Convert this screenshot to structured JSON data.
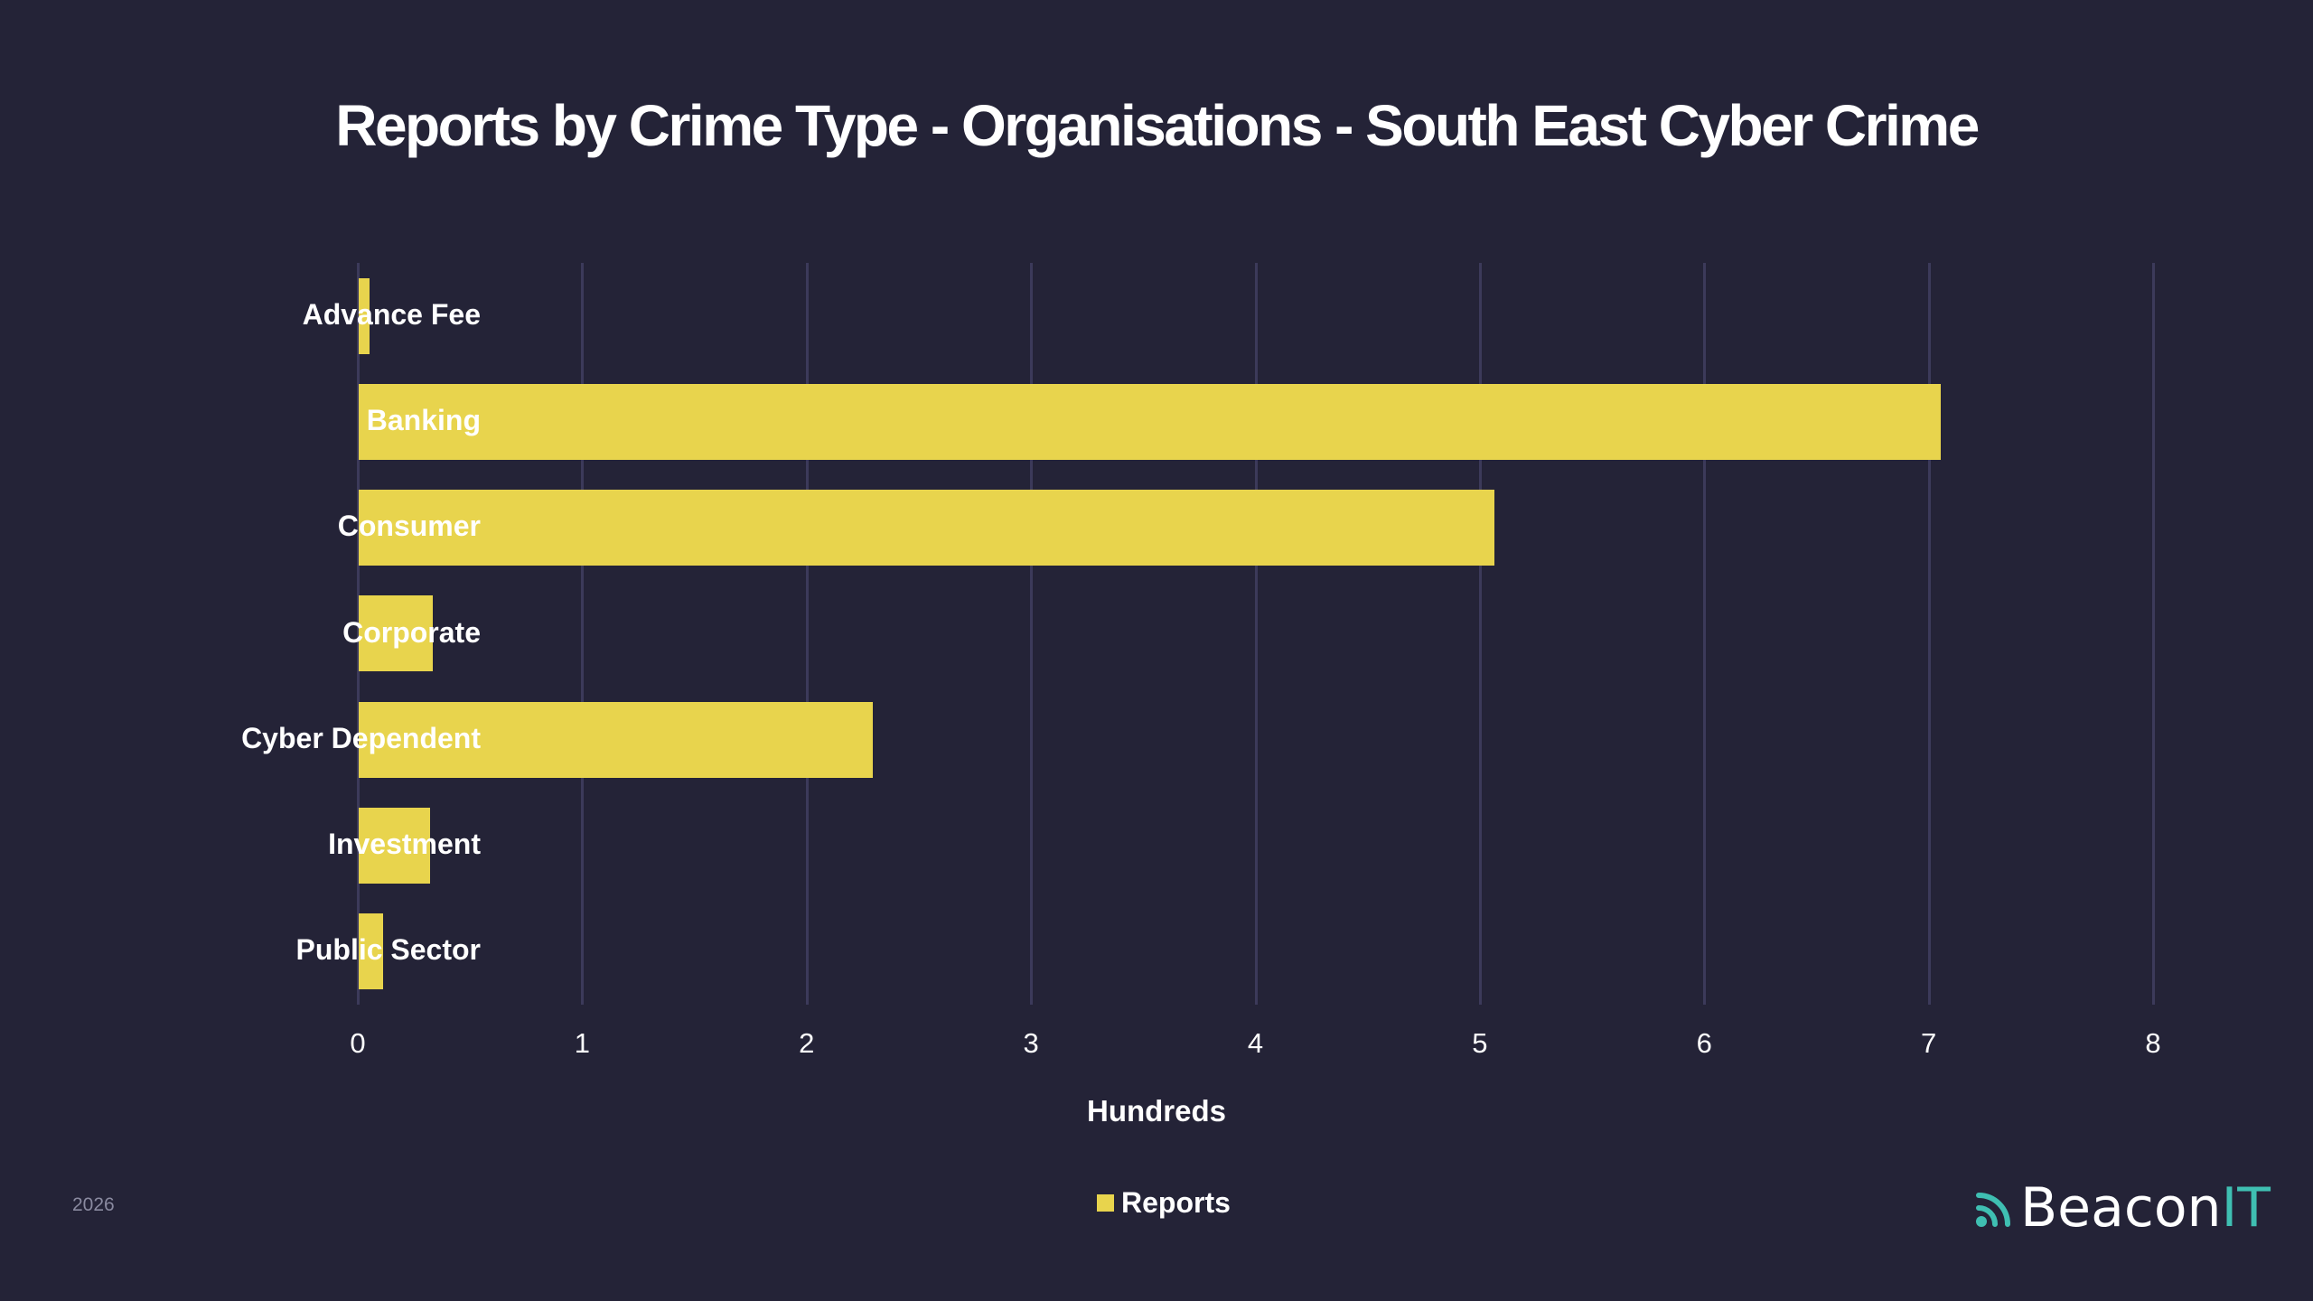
{
  "chart_data": {
    "type": "bar",
    "orientation": "horizontal",
    "title": "Reports by Crime Type - Organisations - South East Cyber Crime",
    "xlabel": "Hundreds",
    "ylabel": "",
    "categories": [
      "Advance Fee",
      "Banking",
      "Consumer",
      "Corporate",
      "Cyber Dependent",
      "Investment",
      "Public Sector"
    ],
    "series": [
      {
        "name": "Reports",
        "color": "#E8D44D",
        "values": [
          0.05,
          7.05,
          5.06,
          0.33,
          2.29,
          0.32,
          0.11
        ]
      }
    ],
    "xlim": [
      0,
      8
    ],
    "xticks": [
      "0",
      "1",
      "2",
      "3",
      "4",
      "5",
      "6",
      "7",
      "8"
    ],
    "grid": "vertical",
    "legend_position": "bottom"
  },
  "header": {
    "title": "Reports by Crime Type - Organisations - South East Cyber Crime"
  },
  "axis": {
    "xlabel": "Hundreds",
    "ticks": [
      "0",
      "1",
      "2",
      "3",
      "4",
      "5",
      "6",
      "7",
      "8"
    ]
  },
  "categories": [
    "Advance Fee",
    "Banking",
    "Consumer",
    "Corporate",
    "Cyber Dependent",
    "Investment",
    "Public Sector"
  ],
  "legend": {
    "items": [
      {
        "label": "Reports",
        "color": "#E8D44D"
      }
    ]
  },
  "footer": {
    "year": "2026",
    "logo_part1": "Beacon",
    "logo_part2": "IT",
    "logo_icon": "broadcast-icon"
  },
  "colors": {
    "background": "#242337",
    "bar": "#E8D44D",
    "gridline": "#3C3A5A",
    "accent": "#3FBFB2"
  }
}
